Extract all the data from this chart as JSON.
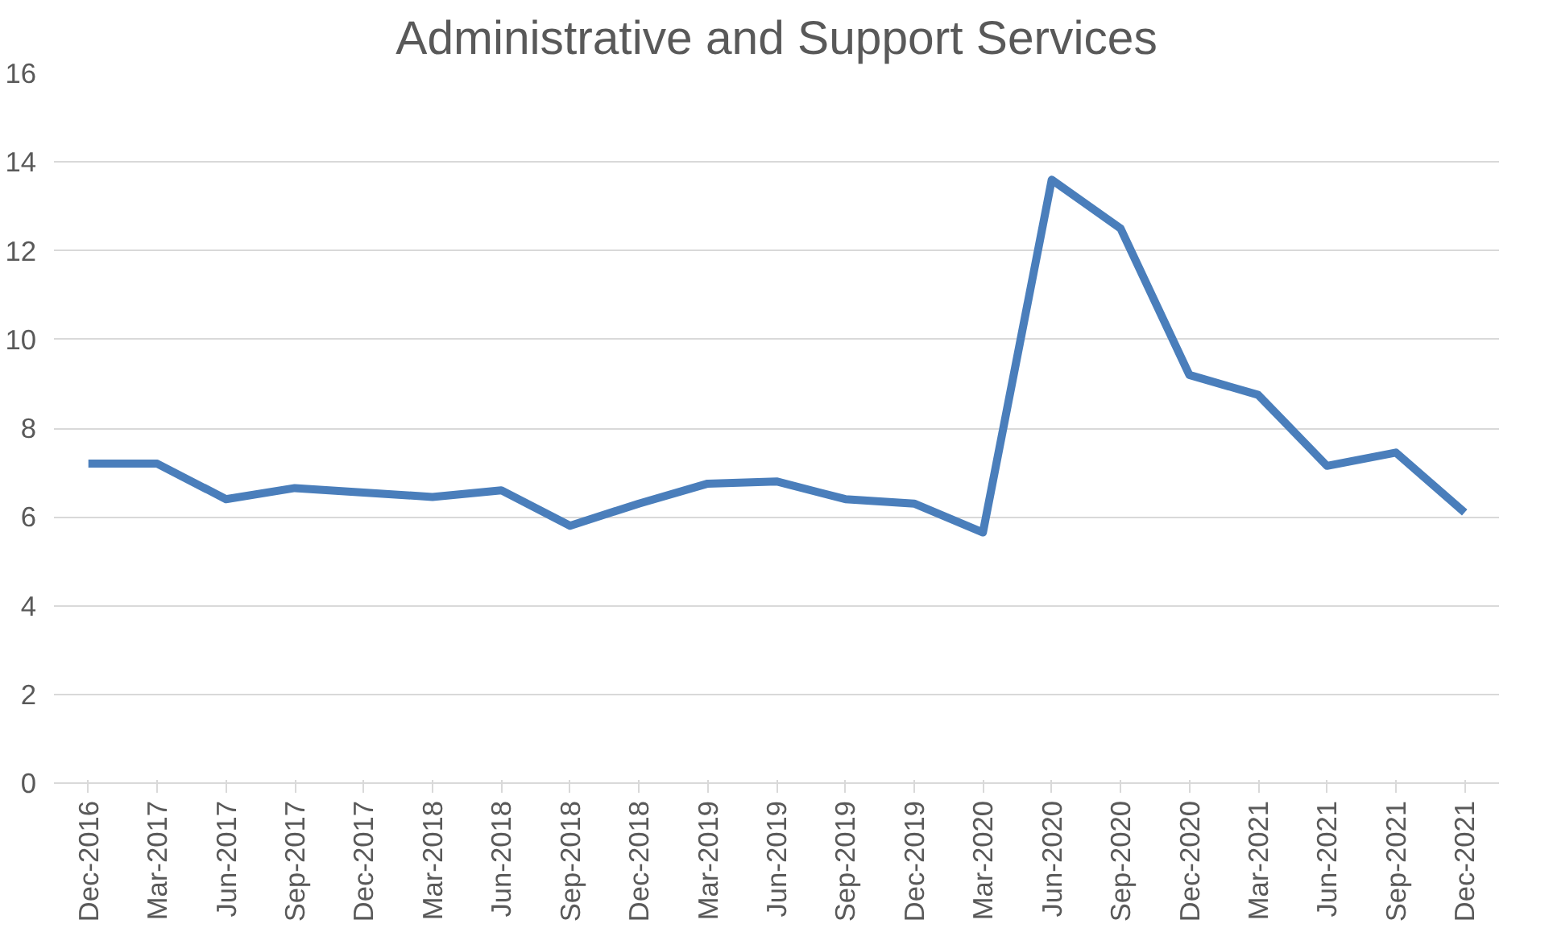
{
  "chart_data": {
    "type": "line",
    "title": "Administrative and Support Services",
    "categories": [
      "Dec-2016",
      "Mar-2017",
      "Jun-2017",
      "Sep-2017",
      "Dec-2017",
      "Mar-2018",
      "Jun-2018",
      "Sep-2018",
      "Dec-2018",
      "Mar-2019",
      "Jun-2019",
      "Sep-2019",
      "Dec-2019",
      "Mar-2020",
      "Jun-2020",
      "Sep-2020",
      "Dec-2020",
      "Mar-2021",
      "Jun-2021",
      "Sep-2021",
      "Dec-2021"
    ],
    "series": [
      {
        "color": "#4a7ebb",
        "values": [
          7.2,
          7.2,
          6.4,
          6.65,
          6.55,
          6.45,
          6.6,
          5.8,
          6.3,
          6.75,
          6.8,
          6.4,
          6.3,
          5.65,
          13.6,
          12.5,
          9.2,
          8.75,
          7.15,
          7.45,
          6.1
        ]
      }
    ],
    "ylim": [
      0,
      16
    ],
    "yticks": [
      0,
      2,
      4,
      6,
      8,
      10,
      12,
      14,
      16
    ],
    "grid": "y",
    "marker": "none",
    "line_style": "solid"
  }
}
